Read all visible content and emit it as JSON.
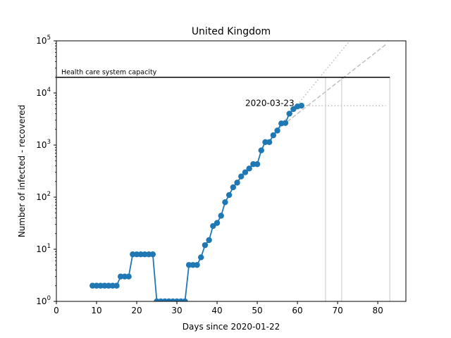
{
  "chart_data": {
    "type": "line",
    "title": "United Kingdom",
    "xlabel": "Days since 2020-01-22",
    "ylabel": "Number of infected - recovered",
    "y_scale": "log",
    "xlim": [
      0,
      87
    ],
    "ylim": [
      1,
      100000
    ],
    "x_ticks": [
      0,
      10,
      20,
      30,
      40,
      50,
      60,
      70,
      80
    ],
    "y_ticks": [
      {
        "value": 1,
        "base": "10",
        "exp": "0"
      },
      {
        "value": 10,
        "base": "10",
        "exp": "1"
      },
      {
        "value": 100,
        "base": "10",
        "exp": "2"
      },
      {
        "value": 1000,
        "base": "10",
        "exp": "3"
      },
      {
        "value": 10000,
        "base": "10",
        "exp": "4"
      },
      {
        "value": 100000,
        "base": "10",
        "exp": "5"
      }
    ],
    "colors": {
      "series": "#1f77b4",
      "capacity": "#000000",
      "projection": "#bfbfbf",
      "vertical_markers": "#d9d9d9"
    },
    "series": [
      {
        "x": [
          9,
          10,
          11,
          12,
          13,
          14,
          15,
          16,
          17,
          18,
          19,
          20,
          21,
          22,
          23,
          24,
          25,
          26,
          27,
          28,
          29,
          30,
          31,
          32,
          33,
          34,
          35,
          36,
          37,
          38,
          39,
          40,
          41,
          42,
          43,
          44,
          45,
          46,
          47,
          48,
          49,
          50,
          51,
          52,
          53,
          54,
          55,
          56,
          57,
          58,
          59,
          60,
          61
        ],
        "y": [
          2,
          2,
          2,
          2,
          2,
          2,
          2,
          3,
          3,
          3,
          8,
          8,
          8,
          8,
          8,
          8,
          1,
          1,
          1,
          1,
          1,
          1,
          1,
          1,
          5,
          5,
          5,
          7,
          12,
          15,
          28,
          32,
          44,
          80,
          110,
          155,
          190,
          250,
          300,
          355,
          430,
          430,
          790,
          1140,
          1140,
          1540,
          1900,
          2600,
          2650,
          4000,
          4900,
          5500,
          5700
        ]
      }
    ],
    "capacity_line": {
      "label": "Health care system capacity",
      "y": 20000,
      "x_start": 0,
      "x_end": 83
    },
    "annotation": {
      "text": "2020-03-23",
      "x": 47,
      "y": 6400
    },
    "projections": [
      {
        "style": "dashed",
        "x_start": 55,
        "y_start": 2000,
        "x_end": 82,
        "y_end": 85000
      },
      {
        "style": "dotted",
        "x_start": 55,
        "y_start": 2000,
        "x_end": 73,
        "y_end": 100000
      },
      {
        "style": "dotted",
        "x_start": 55,
        "y_start": 5700,
        "x_end": 82,
        "y_end": 5700
      }
    ],
    "vertical_markers": [
      67,
      71,
      83
    ]
  }
}
